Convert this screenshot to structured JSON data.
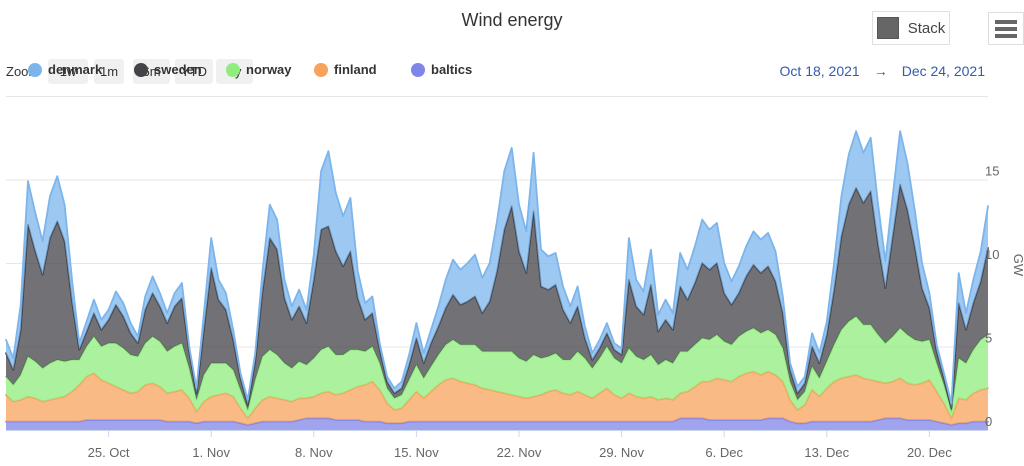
{
  "header": {
    "title": "Wind energy",
    "stack_button_label": "Stack",
    "stack_swatch_color": "#666666",
    "menu_icon": "hamburger-menu-icon",
    "menu_icon_color": "#666666"
  },
  "range_selector": {
    "label": "Zoom",
    "buttons": [
      "1w",
      "1m",
      "6m",
      "YTD",
      "1y"
    ],
    "date_from": "Oct 18, 2021",
    "date_arrow": "→",
    "date_to": "Dec 24, 2021",
    "date_color": "#335cad"
  },
  "legend": {
    "items": [
      {
        "label": "denmark",
        "color": "#7cb5ec"
      },
      {
        "label": "sweden",
        "color": "#434348"
      },
      {
        "label": "norway",
        "color": "#90ed7d"
      },
      {
        "label": "finland",
        "color": "#f7a35c"
      },
      {
        "label": "baltics",
        "color": "#8085e9"
      }
    ]
  },
  "chart_data": {
    "type": "area",
    "stacking": "normal",
    "title": "Wind energy",
    "x_start": "Oct 18, 2021",
    "x_end": "Dec 24, 2021",
    "total_days": 67,
    "points_per_day": 2,
    "fill_opacity": 0.75,
    "grid_color": "#e6e6e6",
    "axis_line_color": "#ccd6eb",
    "axis_label_color": "#666666",
    "x_ticks": [
      {
        "label": "25. Oct",
        "day": 7
      },
      {
        "label": "1. Nov",
        "day": 14
      },
      {
        "label": "8. Nov",
        "day": 21
      },
      {
        "label": "15. Nov",
        "day": 28
      },
      {
        "label": "22. Nov",
        "day": 35
      },
      {
        "label": "29. Nov",
        "day": 42
      },
      {
        "label": "6. Dec",
        "day": 49
      },
      {
        "label": "13. Dec",
        "day": 56
      },
      {
        "label": "20. Dec",
        "day": 63
      }
    ],
    "y_axis": {
      "title": "GW",
      "side": "right",
      "max": 20,
      "tick_labels": [
        0,
        5,
        10,
        15
      ],
      "gridlines": [
        0,
        5,
        10,
        15,
        20
      ]
    },
    "series": [
      {
        "name": "baltics",
        "color": "#8085e9",
        "values": [
          0.5,
          0.5,
          0.5,
          0.5,
          0.5,
          0.5,
          0.5,
          0.5,
          0.5,
          0.5,
          0.5,
          0.6,
          0.6,
          0.6,
          0.6,
          0.6,
          0.6,
          0.6,
          0.6,
          0.6,
          0.6,
          0.6,
          0.5,
          0.5,
          0.5,
          0.5,
          0.4,
          0.5,
          0.5,
          0.5,
          0.5,
          0.5,
          0.4,
          0.3,
          0.4,
          0.5,
          0.5,
          0.5,
          0.5,
          0.5,
          0.6,
          0.7,
          0.7,
          0.7,
          0.7,
          0.6,
          0.6,
          0.6,
          0.6,
          0.5,
          0.5,
          0.5,
          0.4,
          0.4,
          0.4,
          0.5,
          0.5,
          0.5,
          0.5,
          0.5,
          0.5,
          0.5,
          0.5,
          0.5,
          0.5,
          0.5,
          0.5,
          0.5,
          0.5,
          0.5,
          0.5,
          0.5,
          0.5,
          0.5,
          0.5,
          0.5,
          0.5,
          0.5,
          0.5,
          0.5,
          0.5,
          0.5,
          0.5,
          0.5,
          0.5,
          0.5,
          0.5,
          0.5,
          0.5,
          0.5,
          0.5,
          0.5,
          0.7,
          0.7,
          0.7,
          0.7,
          0.6,
          0.6,
          0.6,
          0.6,
          0.6,
          0.6,
          0.6,
          0.6,
          0.7,
          0.7,
          0.7,
          0.5,
          0.4,
          0.4,
          0.5,
          0.5,
          0.5,
          0.5,
          0.5,
          0.5,
          0.5,
          0.5,
          0.5,
          0.6,
          0.7,
          0.7,
          0.7,
          0.6,
          0.6,
          0.6,
          0.6,
          0.5,
          0.4,
          0.3,
          0.4,
          0.4,
          0.5,
          0.5,
          0.5
        ]
      },
      {
        "name": "finland",
        "color": "#f7a35c",
        "values": [
          1.6,
          1.2,
          1.3,
          1.5,
          1.4,
          1.2,
          1.3,
          1.4,
          1.5,
          1.8,
          2.2,
          2.6,
          2.8,
          2.4,
          2.2,
          2.0,
          1.8,
          1.6,
          1.7,
          2.1,
          2.2,
          2.0,
          1.7,
          1.8,
          1.9,
          1.4,
          0.7,
          1.2,
          1.5,
          1.6,
          1.7,
          1.5,
          0.9,
          0.4,
          0.9,
          1.3,
          1.5,
          1.4,
          1.3,
          1.2,
          1.3,
          1.2,
          1.3,
          1.5,
          1.6,
          1.5,
          1.6,
          1.8,
          2.0,
          2.2,
          2.4,
          1.9,
          1.2,
          0.8,
          0.9,
          1.3,
          1.8,
          1.4,
          1.8,
          2.2,
          2.5,
          2.6,
          2.4,
          2.3,
          2.2,
          2.0,
          1.9,
          1.8,
          1.7,
          1.6,
          1.5,
          1.4,
          1.5,
          1.6,
          1.8,
          1.9,
          1.7,
          1.6,
          1.8,
          1.6,
          1.4,
          1.7,
          2.0,
          1.6,
          1.4,
          1.7,
          1.5,
          1.4,
          1.5,
          1.3,
          1.4,
          1.3,
          1.5,
          1.6,
          1.9,
          2.2,
          2.3,
          2.5,
          2.4,
          2.3,
          2.6,
          2.8,
          2.9,
          2.7,
          2.8,
          2.6,
          2.2,
          1.3,
          0.8,
          1.1,
          1.9,
          1.5,
          2.0,
          2.4,
          2.6,
          2.7,
          2.8,
          2.6,
          2.5,
          2.3,
          2.1,
          2.2,
          2.4,
          2.2,
          2.1,
          2.2,
          2.4,
          1.8,
          1.2,
          0.4,
          1.5,
          1.4,
          1.7,
          1.9,
          2.0
        ]
      },
      {
        "name": "norway",
        "color": "#90ed7d",
        "values": [
          1.1,
          1.0,
          1.5,
          2.4,
          2.2,
          2.0,
          2.2,
          2.3,
          2.1,
          1.9,
          1.5,
          1.8,
          2.2,
          2.0,
          2.4,
          2.6,
          2.5,
          2.3,
          2.1,
          2.5,
          2.8,
          2.7,
          2.5,
          2.7,
          2.8,
          1.8,
          0.7,
          1.6,
          2.0,
          1.9,
          1.8,
          1.6,
          1.1,
          0.5,
          1.7,
          2.6,
          2.8,
          2.6,
          2.2,
          2.0,
          2.2,
          2.0,
          2.3,
          2.6,
          2.7,
          2.4,
          2.3,
          2.4,
          2.2,
          2.0,
          2.1,
          1.6,
          0.9,
          0.7,
          0.8,
          1.2,
          1.6,
          1.2,
          1.5,
          1.8,
          2.1,
          2.3,
          2.2,
          2.3,
          2.4,
          2.2,
          2.3,
          2.4,
          2.5,
          2.6,
          2.3,
          2.2,
          2.5,
          2.2,
          2.1,
          2.2,
          2.0,
          2.1,
          2.4,
          2.2,
          1.8,
          2.1,
          2.5,
          2.2,
          2.1,
          2.7,
          2.4,
          2.3,
          2.5,
          2.1,
          2.3,
          2.2,
          2.5,
          2.4,
          2.5,
          2.6,
          2.5,
          2.6,
          2.3,
          2.2,
          2.4,
          2.5,
          2.6,
          2.5,
          2.5,
          2.4,
          2.0,
          1.1,
          0.6,
          0.8,
          1.4,
          1.1,
          1.6,
          2.2,
          2.9,
          3.3,
          3.5,
          3.2,
          3.3,
          2.8,
          2.4,
          2.7,
          3.0,
          2.9,
          2.7,
          2.5,
          2.4,
          1.7,
          1.1,
          0.4,
          2.4,
          2.2,
          2.6,
          3.0,
          3.2
        ]
      },
      {
        "name": "sweden",
        "color": "#434348",
        "values": [
          1.4,
          0.9,
          2.7,
          7.9,
          6.6,
          5.6,
          7.5,
          8.3,
          7.2,
          3.5,
          0.6,
          0.9,
          1.4,
          1.0,
          1.4,
          2.3,
          1.9,
          1.3,
          0.8,
          2.0,
          2.6,
          2.1,
          1.7,
          2.4,
          2.7,
          1.0,
          0.4,
          2.7,
          5.7,
          3.8,
          3.2,
          1.8,
          0.7,
          0.3,
          1.1,
          3.9,
          6.7,
          6.3,
          3.9,
          2.9,
          3.3,
          2.5,
          4.7,
          7.2,
          7.2,
          6.2,
          5.3,
          5.9,
          3.1,
          1.9,
          2.0,
          0.8,
          0.4,
          0.3,
          0.4,
          0.9,
          1.6,
          0.9,
          1.4,
          1.7,
          2.2,
          2.7,
          2.4,
          2.6,
          2.9,
          2.3,
          3.0,
          4.8,
          7.3,
          8.7,
          6.4,
          5.3,
          8.6,
          4.3,
          4.0,
          4.1,
          3.0,
          2.2,
          2.7,
          1.2,
          0.5,
          0.6,
          0.8,
          0.5,
          0.5,
          4.1,
          3.0,
          2.7,
          4.2,
          2.0,
          2.4,
          2.0,
          3.9,
          3.1,
          3.7,
          4.5,
          4.2,
          4.3,
          2.9,
          2.4,
          2.6,
          3.3,
          3.8,
          3.6,
          3.8,
          3.2,
          2.1,
          0.7,
          0.4,
          0.5,
          1.2,
          0.9,
          1.6,
          3.3,
          5.6,
          7.0,
          7.7,
          7.3,
          8.0,
          5.4,
          3.3,
          6.0,
          8.6,
          7.5,
          5.6,
          3.2,
          1.9,
          0.7,
          0.4,
          0.2,
          3.3,
          2.0,
          2.8,
          3.5,
          5.2
        ]
      },
      {
        "name": "denmark",
        "color": "#7cb5ec",
        "values": [
          0.8,
          0.7,
          1.5,
          2.6,
          2.3,
          2.0,
          2.5,
          2.7,
          2.2,
          1.3,
          0.4,
          0.6,
          0.8,
          0.6,
          0.6,
          0.8,
          0.8,
          0.6,
          0.4,
          0.8,
          1.0,
          0.8,
          0.6,
          0.8,
          0.9,
          0.3,
          0.3,
          1.0,
          1.8,
          1.2,
          1.0,
          0.6,
          0.3,
          0.3,
          0.5,
          1.2,
          2.0,
          1.8,
          1.1,
          0.8,
          1.0,
          0.8,
          1.5,
          3.5,
          4.5,
          3.5,
          3.0,
          3.2,
          1.6,
          1.0,
          1.0,
          0.4,
          0.3,
          0.3,
          0.4,
          0.6,
          0.9,
          0.6,
          0.8,
          1.2,
          1.7,
          2.1,
          2.1,
          2.3,
          2.5,
          2.1,
          2.3,
          3.0,
          3.5,
          3.5,
          2.8,
          2.5,
          3.5,
          2.2,
          2.0,
          1.9,
          1.4,
          1.0,
          1.2,
          0.7,
          0.4,
          0.5,
          0.6,
          0.4,
          0.4,
          2.5,
          1.6,
          1.4,
          2.1,
          1.0,
          1.2,
          1.0,
          2.0,
          1.8,
          2.2,
          2.6,
          2.4,
          2.4,
          1.8,
          1.4,
          1.6,
          1.8,
          2.0,
          2.0,
          2.0,
          1.8,
          1.0,
          0.4,
          0.4,
          0.4,
          0.8,
          0.6,
          0.8,
          1.6,
          2.4,
          3.0,
          3.4,
          3.0,
          3.2,
          2.4,
          1.6,
          2.4,
          3.2,
          2.8,
          2.2,
          1.5,
          0.9,
          0.4,
          0.3,
          0.3,
          1.8,
          1.0,
          1.4,
          1.8,
          2.5
        ]
      }
    ]
  }
}
